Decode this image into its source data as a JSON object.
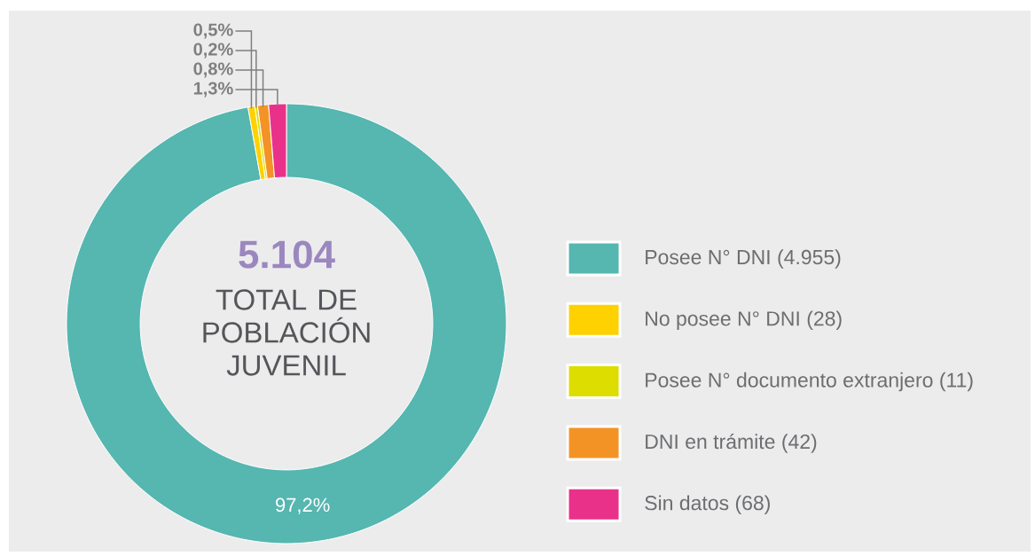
{
  "chart_data": {
    "type": "donut",
    "categories": [
      "Posee N° DNI (4.955)",
      "No posee N° DNI (28)",
      "Posee N° documento extranjero (11)",
      "DNI en trámite (42)",
      "Sin datos (68)"
    ],
    "values": [
      97.2,
      0.5,
      0.2,
      0.8,
      1.3
    ],
    "value_labels": [
      "97,2%",
      "0,5%",
      "0,2%",
      "0,8%",
      "1,3%"
    ],
    "colors": [
      "#56b6b0",
      "#ffd100",
      "#dddd00",
      "#f39325",
      "#e9318a"
    ],
    "annotations": [
      "5.104",
      "TOTAL DE POBLACIÓN JUVENIL"
    ],
    "legend": "right"
  }
}
